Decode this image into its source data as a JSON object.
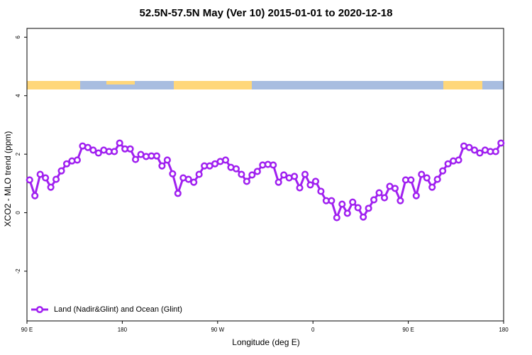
{
  "chart_data": {
    "type": "line",
    "title": "52.5N-57.5N May (Ver 10)   2015-01-01 to 2020-12-18",
    "x_label": "Longitude (deg E)",
    "y_label": "XCO2 - MLO trend (ppm)",
    "x": [
      92.5,
      97.5,
      102.5,
      107.5,
      112.5,
      117.5,
      122.5,
      127.5,
      132.5,
      137.5,
      142.5,
      147.5,
      152.5,
      157.5,
      162.5,
      167.5,
      172.5,
      177.5,
      182.5,
      187.5,
      192.5,
      197.5,
      202.5,
      207.5,
      212.5,
      217.5,
      222.5,
      227.5,
      232.5,
      237.5,
      242.5,
      247.5,
      252.5,
      257.5,
      262.5,
      267.5,
      272.5,
      277.5,
      282.5,
      287.5,
      292.5,
      297.5,
      302.5,
      307.5,
      312.5,
      317.5,
      322.5,
      327.5,
      332.5,
      337.5,
      342.5,
      347.5,
      352.5,
      357.5,
      362.5,
      367.5,
      372.5,
      377.5,
      382.5,
      387.5,
      392.5,
      397.5,
      402.5,
      407.5,
      412.5,
      417.5,
      422.5,
      427.5,
      432.5,
      437.5,
      442.5,
      447.5,
      452.5,
      457.5,
      462.5,
      467.5,
      472.5,
      477.5,
      482.5,
      487.5,
      492.5,
      497.5,
      502.5,
      507.5,
      512.5,
      517.5,
      522.5,
      527.5,
      532.5,
      537.5
    ],
    "series": [
      {
        "name": "Land (Nadir&Glint) and Ocean (Glint)",
        "color": "#a020f0",
        "values": [
          1.12,
          0.58,
          1.31,
          1.19,
          0.87,
          1.14,
          1.43,
          1.67,
          1.77,
          1.8,
          2.28,
          2.23,
          2.14,
          2.04,
          2.14,
          2.09,
          2.09,
          2.38,
          2.18,
          2.18,
          1.82,
          1.99,
          1.92,
          1.94,
          1.94,
          1.6,
          1.8,
          1.33,
          0.66,
          1.19,
          1.14,
          1.04,
          1.31,
          1.6,
          1.6,
          1.67,
          1.75,
          1.8,
          1.55,
          1.5,
          1.31,
          1.07,
          1.29,
          1.41,
          1.63,
          1.65,
          1.63,
          1.04,
          1.29,
          1.19,
          1.24,
          0.85,
          1.31,
          0.95,
          1.07,
          0.73,
          0.41,
          0.41,
          -0.17,
          0.29,
          -0.02,
          0.36,
          0.17,
          -0.15,
          0.15,
          0.44,
          0.68,
          0.51,
          0.9,
          0.83,
          0.41,
          1.12,
          1.12,
          0.58,
          1.31,
          1.19,
          0.87,
          1.14,
          1.43,
          1.67,
          1.77,
          1.8,
          2.28,
          2.23,
          2.14,
          2.04,
          2.14,
          2.09,
          2.09,
          2.38
        ]
      }
    ],
    "xlim": [
      90,
      540
    ],
    "xticks": [
      {
        "value": 90,
        "label": "90 E"
      },
      180,
      {
        "value": 270,
        "label": "90 W"
      },
      {
        "value": 360,
        "label": "0"
      },
      {
        "value": 450,
        "label": "90 E"
      },
      {
        "value": 540,
        "label": "180"
      }
    ],
    "ylim": [
      -3.7,
      6.3
    ],
    "yticks": [
      -2,
      0,
      2,
      4,
      6
    ],
    "legend": "bottom-left"
  }
}
